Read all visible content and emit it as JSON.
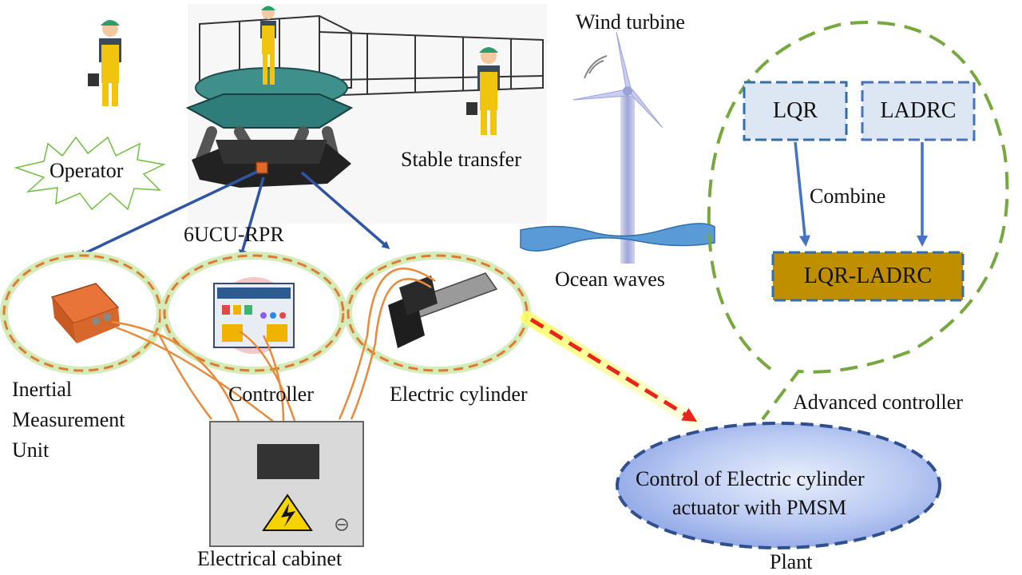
{
  "labels": {
    "operator": "Operator",
    "platform": "6UCU-RPR",
    "stable_transfer": "Stable transfer",
    "wind_turbine": "Wind turbine",
    "ocean_waves": "Ocean waves",
    "imu": [
      "Inertial",
      "Measurement",
      "Unit"
    ],
    "controller": "Controller",
    "electric_cylinder": "Electric cylinder",
    "electrical_cabinet": "Electrical cabinet",
    "advanced_controller": "Advanced controller",
    "plant": "Plant"
  },
  "controller_panel": {
    "lqr": "LQR",
    "ladrc": "LADRC",
    "combine": "Combine",
    "combined": "LQR-LADRC"
  },
  "plant_node": {
    "line1": "Control of Electric cylinder",
    "line2": "actuator with PMSM"
  },
  "colors": {
    "green_dash": "#76a83d",
    "orange_dash": "#dd7a36",
    "blue_arrow": "#2f55a4",
    "red_arrow": "#e8251c",
    "box_fill": "#dde6f3",
    "box_border": "#2f6fb0",
    "combined_fill": "#bf8f00",
    "plant_border": "#2f4f8f",
    "wire": "#e88a3a"
  }
}
